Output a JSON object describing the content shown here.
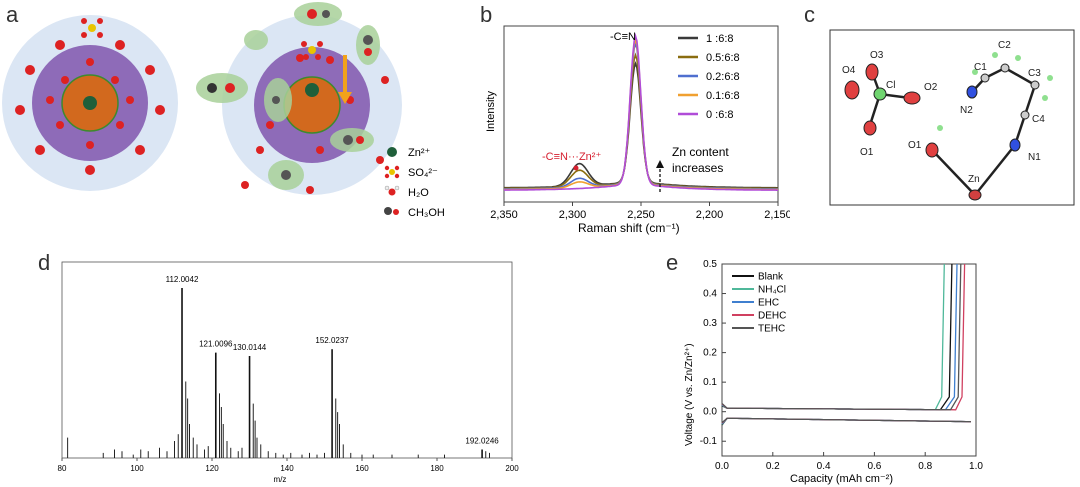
{
  "panel_labels": {
    "a": "a",
    "b": "b",
    "c": "c",
    "d": "d",
    "e": "e"
  },
  "panel_a": {
    "legend": [
      {
        "label": "Zn²⁺",
        "icon": "zinc-ion-icon"
      },
      {
        "label": "SO₄²⁻",
        "icon": "sulfate-icon"
      },
      {
        "label": "H₂O",
        "icon": "water-icon"
      },
      {
        "label": "CH₃OH",
        "icon": "methanol-icon"
      }
    ]
  },
  "panel_c": {
    "atoms": [
      "O4",
      "O3",
      "Cl",
      "O2",
      "O1",
      "C1",
      "C2",
      "C3",
      "C4",
      "N2",
      "N1",
      "O1",
      "Zn"
    ]
  },
  "chart_data": [
    {
      "id": "b",
      "type": "line",
      "title": "",
      "xlabel": "Raman shift (cm⁻¹)",
      "ylabel": "Intensity",
      "xlim": [
        2350,
        2150
      ],
      "xticks": [
        "2,350",
        "2,300",
        "2,250",
        "2,200",
        "2,150"
      ],
      "series": [
        {
          "name": "1 :6:8",
          "color": "#3a3a3a",
          "peak": 0.78,
          "shoulder": 0.15
        },
        {
          "name": "0.5:6:8",
          "color": "#8a6d10",
          "peak": 0.84,
          "shoulder": 0.11
        },
        {
          "name": "0.2:6:8",
          "color": "#4f6fcf",
          "peak": 0.92,
          "shoulder": 0.06
        },
        {
          "name": "0.1:6:8",
          "color": "#f0a030",
          "peak": 0.95,
          "shoulder": 0.04
        },
        {
          "name": "0 :6:8",
          "color": "#b04cd8",
          "peak": 0.98,
          "shoulder": 0.0
        }
      ],
      "annotations": {
        "peak_label": "-C≡N",
        "shoulder_label": "-C≡N···Zn²⁺",
        "arrow_text_1": "Zn content",
        "arrow_text_2": "increases"
      }
    },
    {
      "id": "d",
      "type": "bar",
      "xlabel": "m/z",
      "xlim": [
        80,
        200
      ],
      "xticks": [
        "80",
        "100",
        "120",
        "140",
        "160",
        "180",
        "200"
      ],
      "labeled_peaks": [
        {
          "x": 112.0042,
          "label": "112.0042",
          "rel": 1.0
        },
        {
          "x": 121.0096,
          "label": "121.0096",
          "rel": 0.62
        },
        {
          "x": 130.0144,
          "label": "130.0144",
          "rel": 0.6
        },
        {
          "x": 152.0237,
          "label": "152.0237",
          "rel": 0.64
        },
        {
          "x": 192.0246,
          "label": "192.0246",
          "rel": 0.05
        }
      ]
    },
    {
      "id": "e",
      "type": "line",
      "xlabel": "Capacity (mAh cm⁻²)",
      "ylabel": "Voltage (V vs. Zn/Zn²⁺)",
      "xlim": [
        0.0,
        1.0
      ],
      "ylim": [
        -0.15,
        0.5
      ],
      "xticks": [
        "0.0",
        "0.2",
        "0.4",
        "0.6",
        "0.8",
        "1.0"
      ],
      "yticks": [
        "-0.1",
        "0.0",
        "0.1",
        "0.2",
        "0.3",
        "0.4",
        "0.5"
      ],
      "series": [
        {
          "name": "Blank",
          "color": "#111111",
          "end": 0.905
        },
        {
          "name": "NH₄Cl",
          "color": "#4fb89a",
          "end": 0.875
        },
        {
          "name": "EHC",
          "color": "#3f7fcf",
          "end": 0.925
        },
        {
          "name": "DEHC",
          "color": "#d04060",
          "end": 0.955
        },
        {
          "name": "TEHC",
          "color": "#555555",
          "end": 0.94
        }
      ]
    }
  ]
}
